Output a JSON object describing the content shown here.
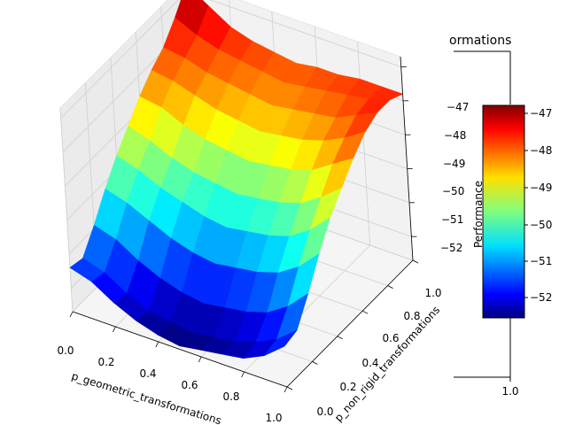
{
  "chart_data": {
    "type": "surface3d",
    "title_fragment": "ormations",
    "xlabel": "p_geometric_transformations",
    "ylabel": "p_non_rigid_transformations",
    "zlabel": "",
    "x_ticks": [
      "0.0",
      "0.2",
      "0.4",
      "0.6",
      "0.8",
      "1.0"
    ],
    "y_ticks": [
      "0.0",
      "0.2",
      "0.4",
      "0.6",
      "0.8",
      "1.0"
    ],
    "z_ticks": [
      "−47",
      "−48",
      "−49",
      "−50",
      "−51",
      "−52"
    ],
    "zlim": [
      -52.7,
      -46.7
    ],
    "colormap": "jet",
    "colorbar": {
      "label": "Performance",
      "ticks": [
        "−47",
        "−48",
        "−49",
        "−50",
        "−51",
        "−52"
      ],
      "range": [
        -52.6,
        -46.8
      ]
    },
    "inset_tick": "1.0",
    "x": [
      0.0,
      0.1,
      0.2,
      0.3,
      0.4,
      0.5,
      0.6,
      0.7,
      0.8,
      0.9,
      1.0
    ],
    "y": [
      0.0,
      0.1,
      0.2,
      0.3,
      0.4,
      0.5,
      0.6,
      0.7,
      0.8,
      0.9,
      1.0
    ],
    "z": [
      [
        -51.4,
        -51.6,
        -52.0,
        -52.3,
        -52.5,
        -52.6,
        -52.5,
        -52.4,
        -52.3,
        -52.0,
        -51.5
      ],
      [
        -51.5,
        -51.7,
        -52.1,
        -52.4,
        -52.5,
        -52.6,
        -52.5,
        -52.4,
        -52.2,
        -51.9,
        -51.4
      ],
      [
        -50.9,
        -51.1,
        -51.5,
        -51.8,
        -52.0,
        -52.1,
        -52.0,
        -51.9,
        -51.7,
        -51.3,
        -50.7
      ],
      [
        -50.2,
        -50.4,
        -50.7,
        -51.0,
        -51.2,
        -51.3,
        -51.2,
        -51.1,
        -50.9,
        -50.5,
        -49.9
      ],
      [
        -49.6,
        -49.8,
        -50.1,
        -50.3,
        -50.5,
        -50.6,
        -50.5,
        -50.4,
        -50.2,
        -49.8,
        -49.2
      ],
      [
        -49.1,
        -49.3,
        -49.6,
        -49.8,
        -49.9,
        -50.0,
        -49.9,
        -49.8,
        -49.6,
        -49.2,
        -48.7
      ],
      [
        -48.6,
        -48.7,
        -49.0,
        -49.2,
        -49.3,
        -49.4,
        -49.3,
        -49.2,
        -49.0,
        -48.6,
        -48.2
      ],
      [
        -48.2,
        -48.3,
        -48.5,
        -48.7,
        -48.8,
        -48.9,
        -48.8,
        -48.7,
        -48.5,
        -48.2,
        -47.8
      ],
      [
        -47.9,
        -48.0,
        -48.2,
        -48.3,
        -48.4,
        -48.5,
        -48.4,
        -48.3,
        -48.2,
        -47.9,
        -47.6
      ],
      [
        -47.4,
        -47.7,
        -47.9,
        -48.0,
        -48.1,
        -48.2,
        -48.1,
        -48.0,
        -47.9,
        -47.8,
        -47.6
      ],
      [
        -46.8,
        -47.2,
        -47.6,
        -47.8,
        -47.9,
        -48.0,
        -47.9,
        -47.9,
        -47.8,
        -47.8,
        -47.8
      ]
    ]
  }
}
